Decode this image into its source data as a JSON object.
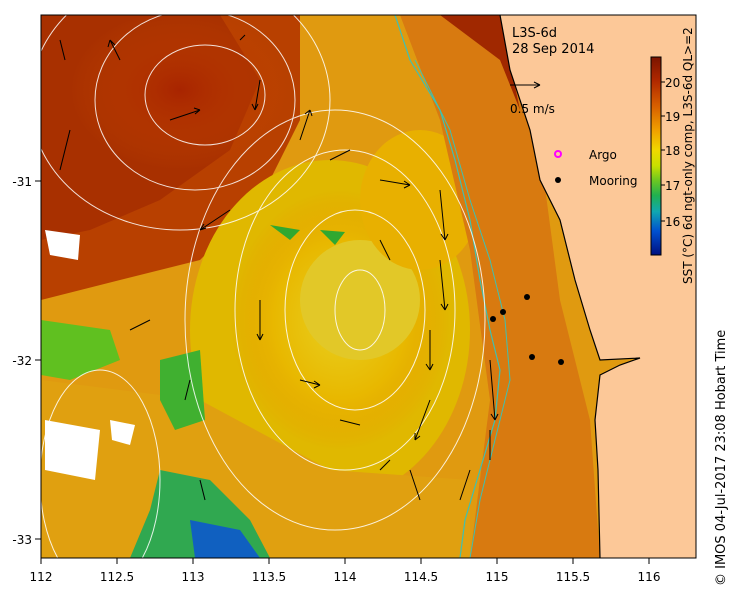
{
  "map": {
    "title_line1": "L3S-6d",
    "title_line2": "28 Sep 2014",
    "scale_label": "0.5 m/s",
    "x_ticks": [
      "112",
      "112.5",
      "113",
      "113.5",
      "114",
      "114.5",
      "115",
      "115.5",
      "116"
    ],
    "y_ticks": [
      "-31",
      "-32",
      "-33"
    ],
    "legend": [
      {
        "label": "Argo",
        "color": "#ff00ff",
        "symbol": "circle-outline"
      },
      {
        "label": "Mooring",
        "color": "#000000",
        "symbol": "filled-dot"
      }
    ],
    "colorbar": {
      "label": "SST (°C) 6d ngt-only comp, L3S-6d QL>=2",
      "ticks": [
        "20",
        "19",
        "18",
        "17",
        "16"
      ],
      "colors": [
        "#8b1a00",
        "#c84100",
        "#e88a00",
        "#f0c000",
        "#d8e000",
        "#9ad000",
        "#30b030",
        "#10a0a0",
        "#0060d0",
        "#001890"
      ]
    },
    "land_color": "#fcc898",
    "credit": "© IMOS 04-Jul-2017 23:08 Hobart Time"
  }
}
